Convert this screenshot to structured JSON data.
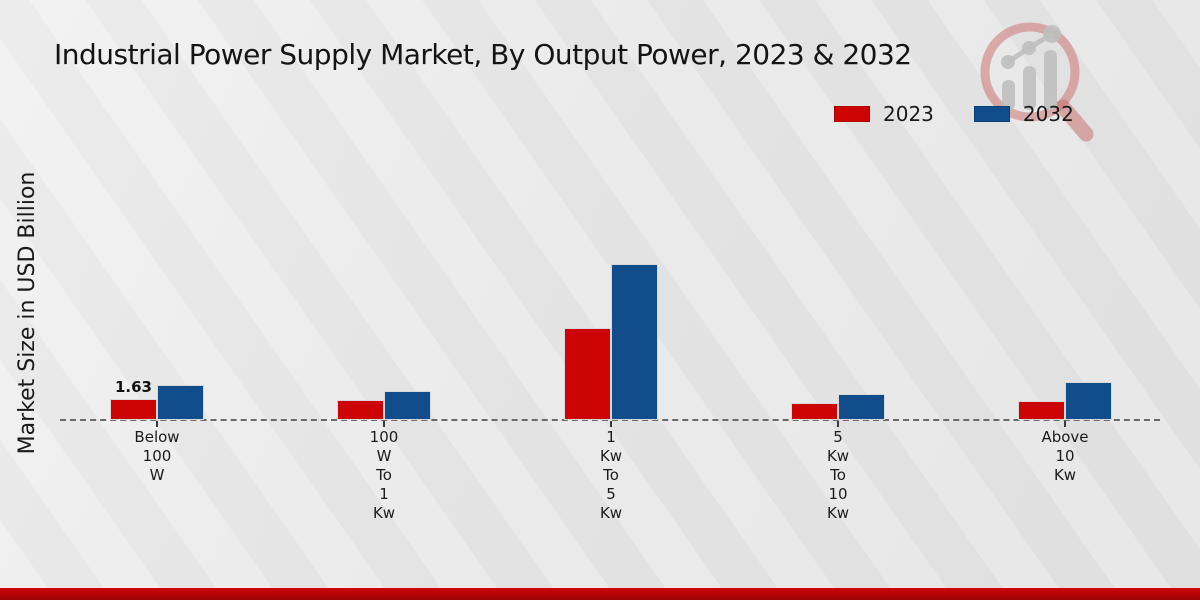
{
  "chart_data": {
    "type": "bar",
    "title": "Industrial Power Supply Market, By Output Power, 2023 & 2032",
    "xlabel": "",
    "ylabel": "Market Size in USD Billion",
    "categories": [
      "Below 100 W",
      "100 W To 1 Kw",
      "1 Kw To 5 Kw",
      "5 Kw To 10 Kw",
      "Above 10 Kw"
    ],
    "series": [
      {
        "name": "2023",
        "color": "#cc0404",
        "values": [
          1.63,
          1.54,
          7.08,
          1.31,
          1.46
        ]
      },
      {
        "name": "2032",
        "color": "#114c8b",
        "values": [
          2.7,
          2.23,
          12.0,
          2.0,
          2.92
        ]
      }
    ],
    "annotations": [
      {
        "series_index": 0,
        "category_index": 0,
        "text": "1.63"
      }
    ],
    "ylim": [
      0,
      13
    ],
    "grid": false,
    "y_axis_ticks_visible": false,
    "baseline_style": "dashed",
    "legend_position": "top-right"
  },
  "footer": {
    "accent_color": "#b30404"
  },
  "watermark": {
    "name": "market-research-magnifier-logo",
    "ring_color": "#c96a6a",
    "bars_color": "#bfbfbf"
  }
}
